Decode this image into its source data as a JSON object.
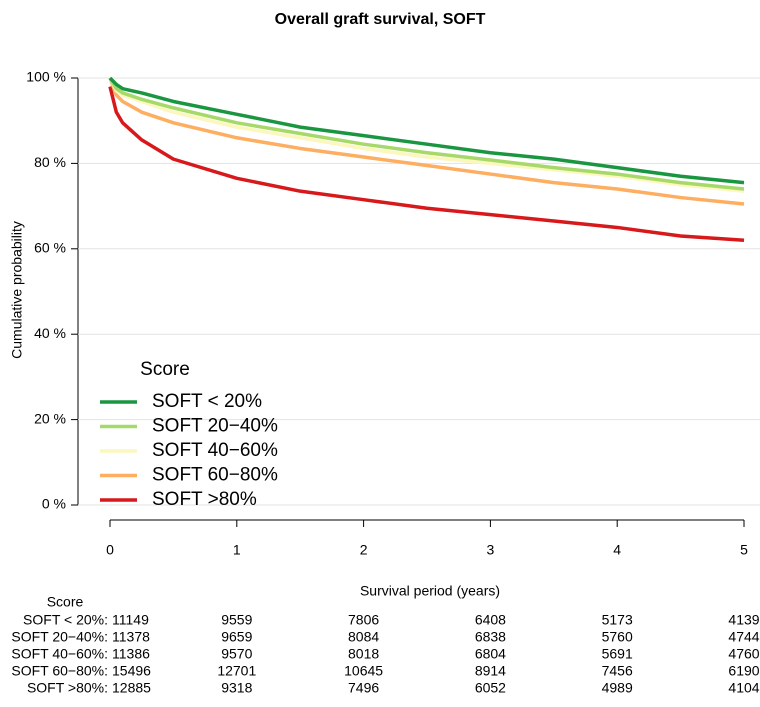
{
  "chart_data": {
    "type": "line",
    "title": "Overall graft survival, SOFT",
    "x_label": "Survival period (years)",
    "y_label": "Cumulative probability",
    "x": [
      0,
      0.05,
      0.1,
      0.25,
      0.5,
      1,
      1.5,
      2,
      2.5,
      3,
      3.5,
      4,
      4.5,
      5
    ],
    "series": [
      {
        "name": "SOFT < 20%",
        "color": "#1a9641",
        "values": [
          100,
          98.5,
          97.5,
          96.5,
          94.5,
          91.5,
          88.5,
          86.5,
          84.5,
          82.5,
          81,
          79,
          77,
          75.5
        ]
      },
      {
        "name": "SOFT 20−40%",
        "color": "#a6d96a",
        "values": [
          100,
          97.5,
          96.5,
          95,
          93,
          89.5,
          87,
          84.5,
          82.5,
          80.8,
          79,
          77.5,
          75.5,
          74
        ]
      },
      {
        "name": "SOFT 40−60%",
        "color": "#fbf7bd",
        "values": [
          100,
          97,
          96,
          94.5,
          92,
          88.5,
          86,
          83.5,
          81.5,
          80,
          78.5,
          77,
          75,
          73.5
        ]
      },
      {
        "name": "SOFT 60−80%",
        "color": "#fdae61",
        "values": [
          100,
          96,
          94.5,
          92,
          89.5,
          86,
          83.5,
          81.5,
          79.5,
          77.5,
          75.5,
          74,
          72,
          70.5
        ]
      },
      {
        "name": "SOFT >80%",
        "color": "#d7191c",
        "values": [
          98,
          92,
          89.5,
          85.5,
          81,
          76.5,
          73.5,
          71.5,
          69.5,
          68,
          66.5,
          65,
          63,
          62
        ]
      }
    ],
    "xlim": [
      0,
      5
    ],
    "xticks": [
      0,
      1,
      2,
      3,
      4,
      5
    ],
    "ylim": [
      0,
      100
    ],
    "yticks": [
      {
        "value": 0,
        "label": "0 %"
      },
      {
        "value": 20,
        "label": "20 %"
      },
      {
        "value": 40,
        "label": "40 %"
      },
      {
        "value": 60,
        "label": "60 %"
      },
      {
        "value": 80,
        "label": "80 %"
      },
      {
        "value": 100,
        "label": "100 %"
      }
    ],
    "grid": true,
    "legend_title": "Score",
    "legend_position": "bottom-left",
    "risk_table": {
      "title": "Score",
      "times": [
        0,
        1,
        2,
        3,
        4,
        5
      ],
      "rows": [
        {
          "label": "SOFT < 20%:",
          "values": [
            11149,
            9559,
            7806,
            6408,
            5173,
            4139
          ]
        },
        {
          "label": "SOFT 20−40%:",
          "values": [
            11378,
            9659,
            8084,
            6838,
            5760,
            4744
          ]
        },
        {
          "label": "SOFT 40−60%:",
          "values": [
            11386,
            9570,
            8018,
            6804,
            5691,
            4760
          ]
        },
        {
          "label": "SOFT 60−80%:",
          "values": [
            15496,
            12701,
            10645,
            8914,
            7456,
            6190
          ]
        },
        {
          "label": "SOFT >80%:",
          "values": [
            12885,
            9318,
            7496,
            6052,
            4989,
            4104
          ]
        }
      ]
    }
  }
}
